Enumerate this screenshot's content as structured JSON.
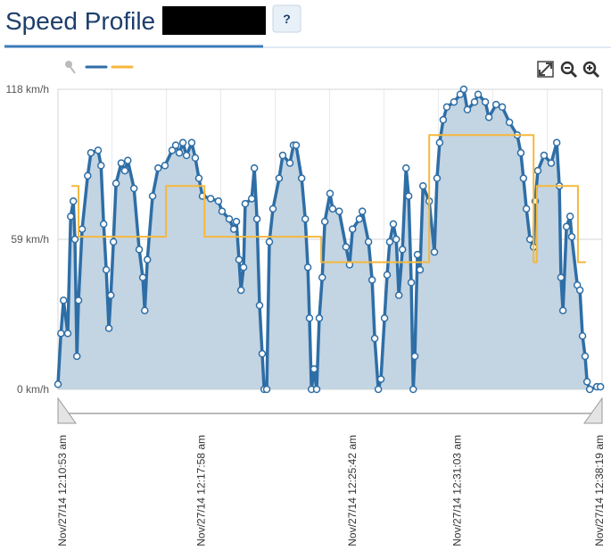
{
  "header": {
    "title": "Speed Profile",
    "help": "?"
  },
  "chart_data": {
    "type": "line",
    "ylim": [
      0,
      118
    ],
    "yticks": [
      {
        "value": 0,
        "label": "0 km/h"
      },
      {
        "value": 59,
        "label": "59 km/h"
      },
      {
        "value": 118,
        "label": "118 km/h"
      }
    ],
    "xlim": [
      "2014-11-27T00:10:39",
      "2014-11-27T00:38:27"
    ],
    "xticks": [
      {
        "value": "2014-11-27T00:10:53",
        "label": "Nov/27/14 12:10:53 am"
      },
      {
        "value": "2014-11-27T00:17:58",
        "label": "Nov/27/14 12:17:58 am"
      },
      {
        "value": "2014-11-27T00:25:42",
        "label": "Nov/27/14 12:25:42 am"
      },
      {
        "value": "2014-11-27T00:31:03",
        "label": "Nov/27/14 12:31:03 am"
      },
      {
        "value": "2014-11-27T00:38:19",
        "label": "Nov/27/14 12:38:19 am"
      }
    ],
    "grid": true,
    "series": [
      {
        "color": "#2e6ea6",
        "fill": "#c3d4e2",
        "markers": true,
        "x": [
          "2014-11-27T00:10:39",
          "2014-11-27T00:10:48",
          "2014-11-27T00:10:56",
          "2014-11-27T00:11:09",
          "2014-11-27T00:11:18",
          "2014-11-27T00:11:26",
          "2014-11-27T00:11:31",
          "2014-11-27T00:11:37",
          "2014-11-27T00:11:42",
          "2014-11-27T00:11:53",
          "2014-11-27T00:12:10",
          "2014-11-27T00:12:20",
          "2014-11-27T00:12:42",
          "2014-11-27T00:12:51",
          "2014-11-27T00:12:59",
          "2014-11-27T00:13:07",
          "2014-11-27T00:13:15",
          "2014-11-27T00:13:21",
          "2014-11-27T00:13:29",
          "2014-11-27T00:13:37",
          "2014-11-27T00:13:53",
          "2014-11-27T00:14:04",
          "2014-11-27T00:14:13",
          "2014-11-27T00:14:32",
          "2014-11-27T00:14:48",
          "2014-11-27T00:14:59",
          "2014-11-27T00:15:05",
          "2014-11-27T00:15:13",
          "2014-11-27T00:15:29",
          "2014-11-27T00:15:46",
          "2014-11-27T00:16:07",
          "2014-11-27T00:16:29",
          "2014-11-27T00:16:40",
          "2014-11-27T00:16:51",
          "2014-11-27T00:17:02",
          "2014-11-27T00:17:13",
          "2014-11-27T00:17:29",
          "2014-11-27T00:17:40",
          "2014-11-27T00:17:51",
          "2014-11-27T00:18:02",
          "2014-11-27T00:18:27",
          "2014-11-27T00:18:51",
          "2014-11-27T00:19:02",
          "2014-11-27T00:19:24",
          "2014-11-27T00:19:38",
          "2014-11-27T00:19:46",
          "2014-11-27T00:19:54",
          "2014-11-27T00:20:00",
          "2014-11-27T00:20:08",
          "2014-11-27T00:20:13",
          "2014-11-27T00:20:33",
          "2014-11-27T00:20:41",
          "2014-11-27T00:20:49",
          "2014-11-27T00:20:57",
          "2014-11-27T00:21:05",
          "2014-11-27T00:21:11",
          "2014-11-27T00:21:19",
          "2014-11-27T00:21:27",
          "2014-11-27T00:21:38",
          "2014-11-27T00:21:57",
          "2014-11-27T00:22:08",
          "2014-11-27T00:22:30",
          "2014-11-27T00:22:41",
          "2014-11-27T00:22:49",
          "2014-11-27T00:23:06",
          "2014-11-27T00:23:17",
          "2014-11-27T00:23:25",
          "2014-11-27T00:23:30",
          "2014-11-27T00:23:36",
          "2014-11-27T00:23:44",
          "2014-11-27T00:23:52",
          "2014-11-27T00:24:00",
          "2014-11-27T00:24:09",
          "2014-11-27T00:24:17",
          "2014-11-27T00:24:33",
          "2014-11-27T00:24:41",
          "2014-11-27T00:25:01",
          "2014-11-27T00:25:22",
          "2014-11-27T00:25:33",
          "2014-11-27T00:25:42",
          "2014-11-27T00:26:03",
          "2014-11-27T00:26:12",
          "2014-11-27T00:26:31",
          "2014-11-27T00:26:42",
          "2014-11-27T00:26:50",
          "2014-11-27T00:27:01",
          "2014-11-27T00:27:09",
          "2014-11-27T00:27:20",
          "2014-11-27T00:27:28",
          "2014-11-27T00:27:36",
          "2014-11-27T00:27:47",
          "2014-11-27T00:27:56",
          "2014-11-27T00:28:04",
          "2014-11-27T00:28:15",
          "2014-11-27T00:28:26",
          "2014-11-27T00:28:34",
          "2014-11-27T00:28:42",
          "2014-11-27T00:28:48",
          "2014-11-27T00:28:53",
          "2014-11-27T00:29:01",
          "2014-11-27T00:29:09",
          "2014-11-27T00:29:18",
          "2014-11-27T00:29:37",
          "2014-11-27T00:29:53",
          "2014-11-27T00:30:01",
          "2014-11-27T00:30:09",
          "2014-11-27T00:30:20",
          "2014-11-27T00:30:31",
          "2014-11-27T00:30:53",
          "2014-11-27T00:31:12",
          "2014-11-27T00:31:23",
          "2014-11-27T00:31:34",
          "2014-11-27T00:31:56",
          "2014-11-27T00:32:07",
          "2014-11-27T00:32:29",
          "2014-11-27T00:32:40",
          "2014-11-27T00:33:02",
          "2014-11-27T00:33:21",
          "2014-11-27T00:33:43",
          "2014-11-27T00:34:07",
          "2014-11-27T00:34:18",
          "2014-11-27T00:34:26",
          "2014-11-27T00:34:35",
          "2014-11-27T00:34:46",
          "2014-11-27T00:34:57",
          "2014-11-27T00:35:02",
          "2014-11-27T00:35:10",
          "2014-11-27T00:35:29",
          "2014-11-27T00:35:51",
          "2014-11-27T00:36:08",
          "2014-11-27T00:36:16",
          "2014-11-27T00:36:21",
          "2014-11-27T00:36:27",
          "2014-11-27T00:36:38",
          "2014-11-27T00:36:49",
          "2014-11-27T00:36:54",
          "2014-11-27T00:37:11",
          "2014-11-27T00:37:19",
          "2014-11-27T00:37:27",
          "2014-11-27T00:37:35",
          "2014-11-27T00:37:41",
          "2014-11-27T00:37:49",
          "2014-11-27T00:38:11",
          "2014-11-27T00:38:22"
        ],
        "values": [
          2,
          22,
          35,
          22,
          68,
          74,
          59,
          13,
          35,
          63,
          84,
          93,
          94,
          88,
          65,
          47,
          24,
          37,
          58,
          81,
          89,
          86,
          90,
          79,
          55,
          44,
          31,
          51,
          76,
          87,
          88,
          94,
          96,
          93,
          97,
          92,
          97,
          91,
          83,
          76,
          75,
          74,
          70,
          67,
          63,
          66,
          51,
          39,
          48,
          73,
          75,
          87,
          67,
          33,
          14,
          0,
          0,
          58,
          71,
          83,
          92,
          89,
          96,
          96,
          83,
          67,
          48,
          28,
          0,
          8,
          0,
          28,
          44,
          66,
          77,
          71,
          70,
          56,
          49,
          63,
          67,
          70,
          58,
          43,
          20,
          0,
          4,
          28,
          45,
          58,
          65,
          59,
          37,
          55,
          87,
          76,
          42,
          0,
          13,
          53,
          47,
          80,
          74,
          54,
          83,
          97,
          106,
          111,
          113,
          116,
          118,
          110,
          113,
          116,
          113,
          107,
          112,
          111,
          105,
          100,
          93,
          83,
          71,
          59,
          56,
          74,
          86,
          92,
          89,
          97,
          80,
          44,
          31,
          64,
          68,
          60,
          41,
          39,
          21,
          13,
          3,
          0,
          1,
          1
        ]
      },
      {
        "color": "#f5b83d",
        "drawstyle": "steps-post",
        "x": [
          "2014-11-27T00:11:20",
          "2014-11-27T00:11:42",
          "2014-11-27T00:16:10",
          "2014-11-27T00:18:08",
          "2014-11-27T00:24:06",
          "2014-11-27T00:29:37",
          "2014-11-27T00:34:57",
          "2014-11-27T00:35:07",
          "2014-11-27T00:37:13",
          "2014-11-27T00:37:38"
        ],
        "values": [
          80,
          60,
          80,
          60,
          50,
          100,
          50,
          80,
          50,
          50
        ]
      }
    ]
  }
}
